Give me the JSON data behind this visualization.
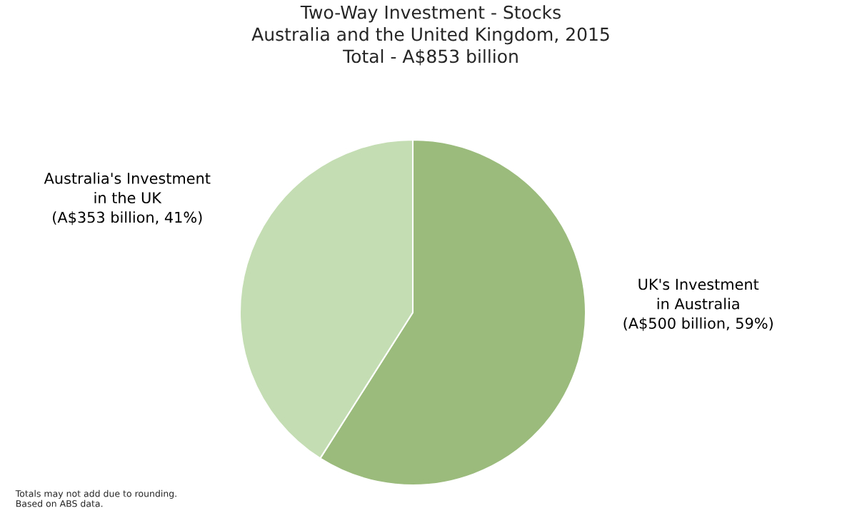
{
  "chart_data": {
    "type": "pie",
    "title": "Two-Way Investment - Stocks\nAustralia and the United Kingdom, 2015\nTotal - A$853 billion",
    "categories": [
      "UK's Investment\nin Australia",
      "Australia's Investment\nin the UK"
    ],
    "values": [
      59,
      41
    ],
    "colors": [
      "#9bbb7c",
      "#c4ddb2"
    ],
    "value_labels": [
      "(A$500 billion, 59%)",
      "(A$353 billion, 41%)"
    ],
    "legend": false,
    "annotations": [
      "Totals may not add due to rounding.\nBased on ABS data."
    ]
  }
}
